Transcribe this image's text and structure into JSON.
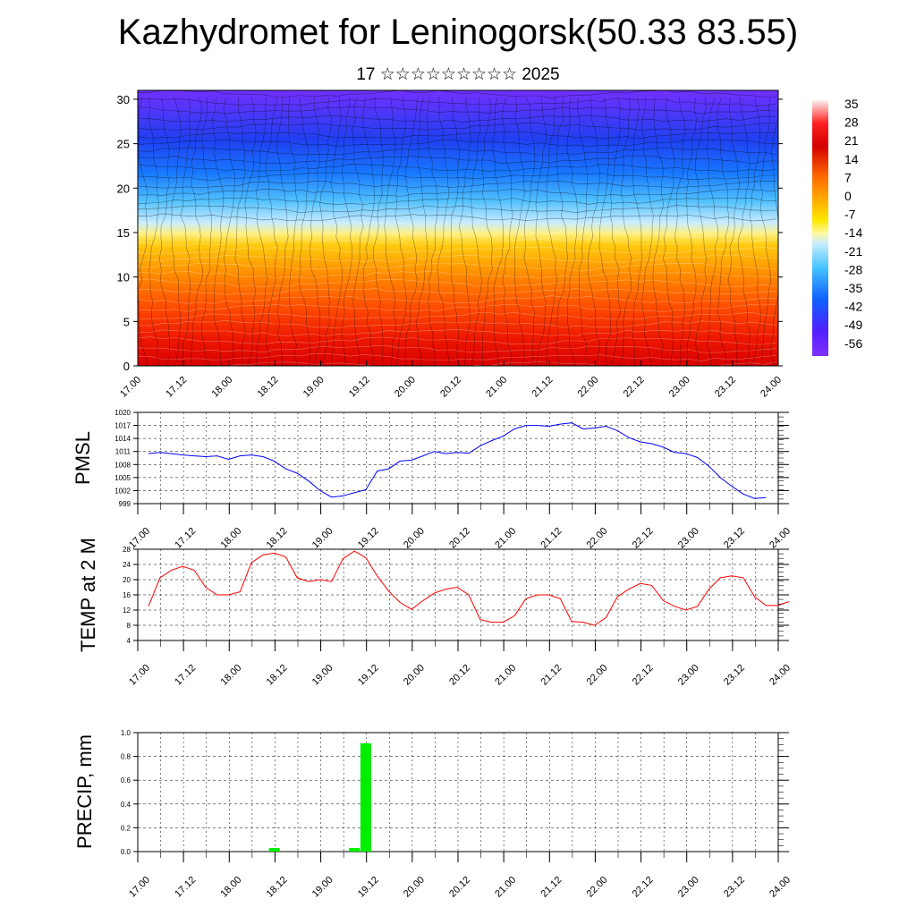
{
  "header": {
    "title": "Kazhydromet for Leninogorsk(50.33 83.55)",
    "subtitle": "17 ☆☆☆☆☆☆☆☆☆ 2025"
  },
  "time_ticks": [
    "17.00",
    "17.12",
    "18.00",
    "18.12",
    "19.00",
    "19.12",
    "20.00",
    "20.12",
    "21.00",
    "21.12",
    "22.00",
    "22.12",
    "23.00",
    "23.12",
    "24.00"
  ],
  "colors": {
    "pmsl_line": "#0000ff",
    "temp_line": "#ff0000",
    "precip_bar": "#00ee00",
    "plot_bg": "#ffffff"
  },
  "chart_data": [
    {
      "type": "heatmap",
      "name": "vertical temperature-wind cross-section",
      "ylim": [
        0,
        31
      ],
      "y_ticks": [
        "0",
        "5",
        "10",
        "15",
        "20",
        "25",
        "30"
      ],
      "colorbar": {
        "labels": [
          "35",
          "28",
          "21",
          "14",
          "7",
          "0",
          "-7",
          "-14",
          "-21",
          "-28",
          "-35",
          "-42",
          "-49",
          "-56"
        ],
        "stops": [
          "#fff0f0",
          "#ff2020",
          "#d40000",
          "#ff6a00",
          "#ffb400",
          "#ffe800",
          "#fff8a0",
          "#c8eeff",
          "#40c0ff",
          "#1060ff",
          "#5020ff",
          "#8030ff"
        ]
      }
    },
    {
      "type": "line",
      "ylabel": "PMSL",
      "ylim": [
        999,
        1020
      ],
      "y_ticks": [
        "999",
        "1002",
        "1005",
        "1008",
        "1011",
        "1014",
        "1017",
        "1020"
      ],
      "x_start": 17.0,
      "step_days": 0.125,
      "values": [
        1010.5,
        1010.8,
        1010.5,
        1010.2,
        1010.0,
        1009.8,
        1010.0,
        1009.2,
        1010.0,
        1010.2,
        1009.8,
        1008.8,
        1007.0,
        1006.0,
        1004.2,
        1002.0,
        1000.5,
        1000.8,
        1001.5,
        1002.2,
        1006.5,
        1007.0,
        1008.8,
        1009.0,
        1010.0,
        1011.0,
        1010.5,
        1010.8,
        1010.6,
        1012.3,
        1013.5,
        1014.5,
        1016.2,
        1017.0,
        1017.0,
        1016.8,
        1017.3,
        1017.6,
        1016.2,
        1016.4,
        1016.8,
        1015.8,
        1014.2,
        1013.2,
        1012.8,
        1012.0,
        1010.8,
        1010.5,
        1009.6,
        1007.6,
        1005.0,
        1003.0,
        1001.2,
        1000.2,
        1000.4
      ]
    },
    {
      "type": "line",
      "ylabel": "TEMP at 2 M",
      "ylim": [
        4,
        28
      ],
      "y_ticks": [
        "4",
        "8",
        "12",
        "16",
        "20",
        "24",
        "28"
      ],
      "x_start": 17.0,
      "step_days": 0.125,
      "values": [
        13.0,
        20.5,
        22.5,
        23.5,
        22.5,
        18.0,
        16.0,
        16.0,
        16.8,
        24.5,
        26.5,
        27.0,
        26.0,
        20.5,
        19.5,
        20.0,
        19.5,
        25.5,
        27.5,
        25.8,
        21.0,
        17.0,
        14.0,
        12.2,
        14.5,
        16.5,
        17.5,
        18.0,
        16.0,
        9.5,
        8.8,
        8.8,
        10.5,
        15.0,
        16.0,
        16.0,
        15.0,
        9.0,
        8.8,
        8.0,
        10.0,
        15.5,
        17.5,
        19.0,
        18.5,
        14.5,
        13.0,
        12.0,
        13.0,
        17.5,
        20.5,
        21.0,
        20.5,
        15.5,
        13.2,
        13.2,
        14.2
      ]
    },
    {
      "type": "bar",
      "ylabel": "PRECIP, mm",
      "ylim": [
        0,
        1.0
      ],
      "y_ticks": [
        "0.0",
        "0.2",
        "0.4",
        "0.6",
        "0.8",
        "1.0"
      ],
      "bars": [
        {
          "x": 18.375,
          "value": 0.03
        },
        {
          "x": 19.25,
          "value": 0.03
        },
        {
          "x": 19.375,
          "value": 0.91
        }
      ]
    }
  ]
}
